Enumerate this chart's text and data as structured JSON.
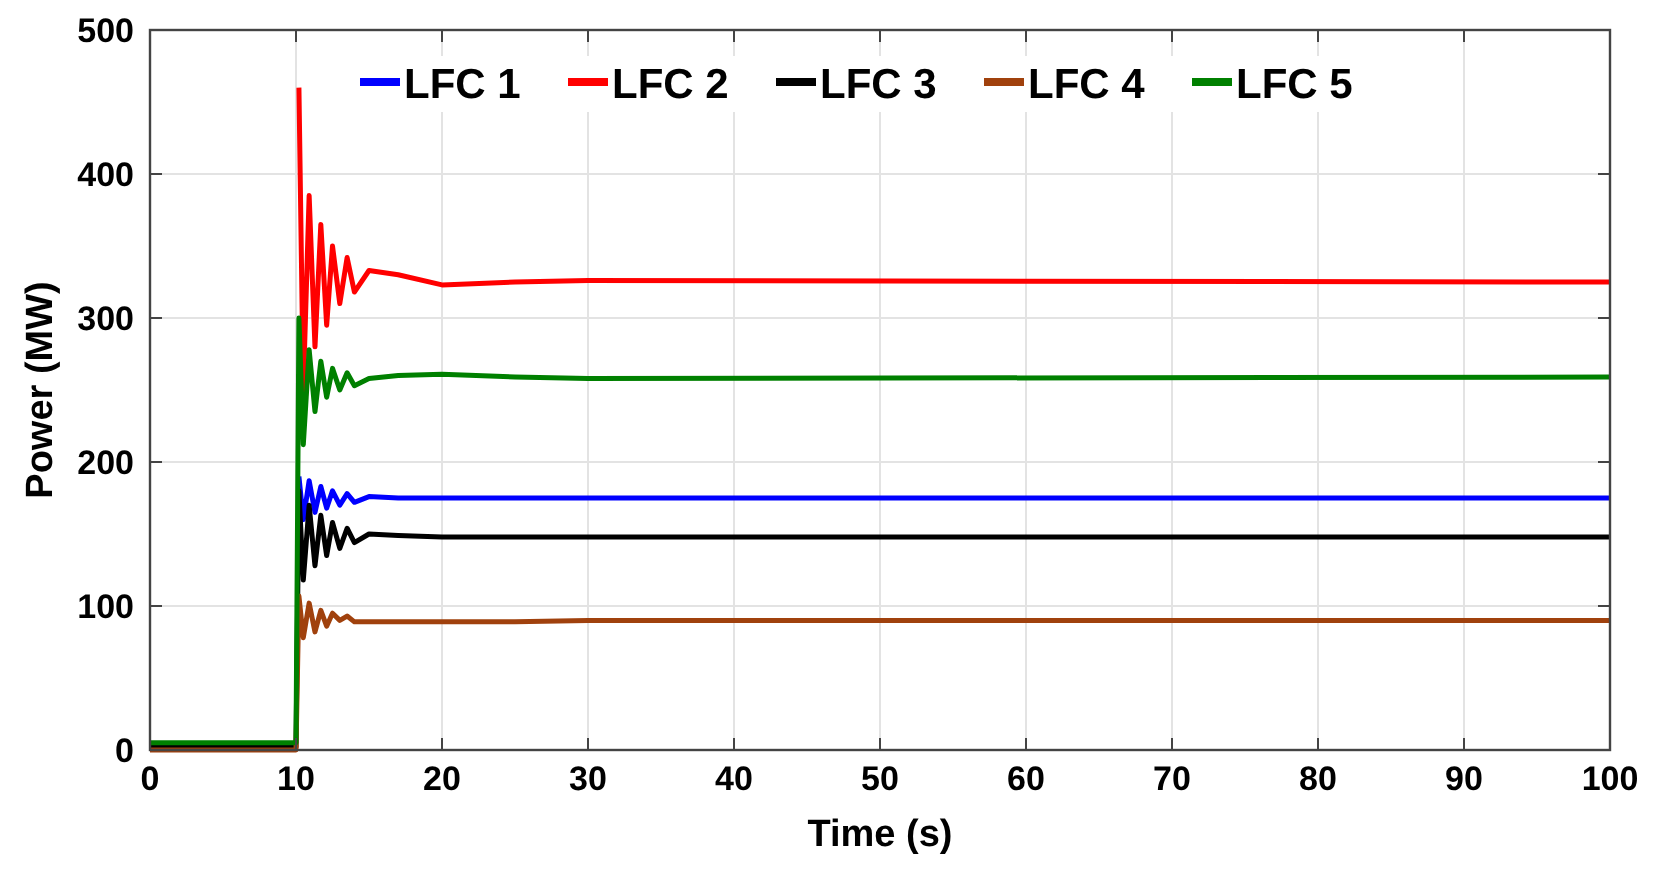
{
  "chart_data": {
    "type": "line",
    "xlabel": "Time (s)",
    "ylabel": "Power (MW)",
    "xlim": [
      0,
      100
    ],
    "ylim": [
      0,
      500
    ],
    "xticks": [
      0,
      10,
      20,
      30,
      40,
      50,
      60,
      70,
      80,
      90,
      100
    ],
    "yticks": [
      0,
      100,
      200,
      300,
      400,
      500
    ],
    "grid": true,
    "legend": "top",
    "line_style": "solid",
    "marker": "none",
    "x": [
      0,
      9.9,
      10,
      10.2,
      10.5,
      10.9,
      11.3,
      11.7,
      12.1,
      12.5,
      13,
      13.5,
      14,
      15,
      17,
      20,
      25,
      30,
      100
    ],
    "series": [
      {
        "name": "LFC 1",
        "color": "#0000ff",
        "values": [
          null,
          null,
          null,
          190,
          160,
          187,
          165,
          183,
          168,
          180,
          170,
          178,
          172,
          176,
          175,
          175,
          175,
          175,
          175
        ]
      },
      {
        "name": "LFC 2",
        "color": "#ff0000",
        "values": [
          null,
          null,
          null,
          460,
          250,
          385,
          280,
          365,
          295,
          350,
          310,
          342,
          318,
          333,
          330,
          323,
          325,
          326,
          325
        ]
      },
      {
        "name": "LFC 3",
        "color": "#000000",
        "values": [
          2,
          2,
          2,
          180,
          118,
          170,
          128,
          163,
          135,
          158,
          140,
          154,
          144,
          150,
          149,
          148,
          148,
          148,
          148
        ]
      },
      {
        "name": "LFC 4",
        "color": "#a0410d",
        "values": [
          0,
          0,
          0,
          107,
          78,
          102,
          82,
          97,
          86,
          95,
          90,
          93,
          89,
          89,
          89,
          89,
          89,
          90,
          90
        ]
      },
      {
        "name": "LFC 5",
        "color": "#008000",
        "values": [
          5,
          5,
          5,
          300,
          212,
          278,
          235,
          270,
          245,
          265,
          250,
          262,
          253,
          258,
          260,
          261,
          259,
          258,
          259
        ]
      }
    ]
  }
}
